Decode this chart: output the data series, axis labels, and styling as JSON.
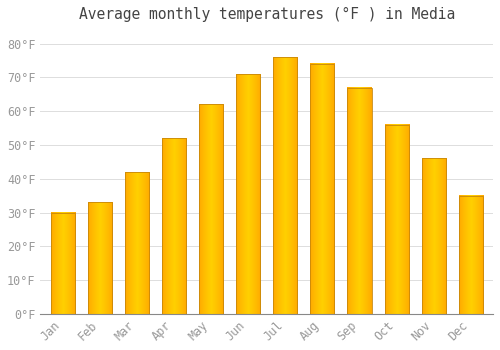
{
  "title": "Average monthly temperatures (°F ) in Media",
  "months": [
    "Jan",
    "Feb",
    "Mar",
    "Apr",
    "May",
    "Jun",
    "Jul",
    "Aug",
    "Sep",
    "Oct",
    "Nov",
    "Dec"
  ],
  "values": [
    30,
    33,
    42,
    52,
    62,
    71,
    76,
    74,
    67,
    56,
    46,
    35
  ],
  "bar_color_main": "#FFA500",
  "bar_color_light": "#FFD000",
  "bar_edge_color": "#C8870A",
  "background_color": "#FFFFFF",
  "grid_color": "#DDDDDD",
  "text_color": "#999999",
  "title_color": "#444444",
  "ylim": [
    0,
    84
  ],
  "yticks": [
    0,
    10,
    20,
    30,
    40,
    50,
    60,
    70,
    80
  ],
  "ytick_labels": [
    "0°F",
    "10°F",
    "20°F",
    "30°F",
    "40°F",
    "50°F",
    "60°F",
    "70°F",
    "80°F"
  ],
  "title_fontsize": 10.5,
  "tick_fontsize": 8.5,
  "bar_width": 0.65
}
